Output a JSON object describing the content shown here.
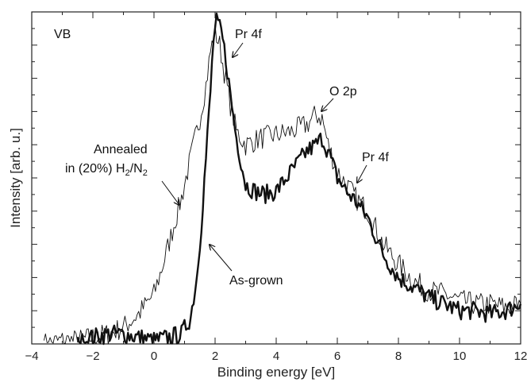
{
  "chart_data": {
    "type": "line",
    "title": "",
    "xlabel": "Binding energy [eV]",
    "ylabel": "Intensity [arb. u.]",
    "xlim": [
      -4,
      12
    ],
    "ylim": [
      0,
      1.0
    ],
    "x_ticks": [
      -4,
      -2,
      0,
      2,
      4,
      6,
      8,
      10,
      12
    ],
    "x_tick_labels": [
      "−4",
      "−2",
      "0",
      "2",
      "4",
      "6",
      "8",
      "10",
      "12"
    ],
    "y_tick_labels": "none",
    "grid": false,
    "panel_label": "VB",
    "series": [
      {
        "name": "Annealed in (20%) H2/N2",
        "style": "thin",
        "color": "#111111",
        "x": [
          -3.6,
          -3.0,
          -2.5,
          -2.0,
          -1.5,
          -1.0,
          -0.5,
          0.0,
          0.3,
          0.6,
          0.9,
          1.1,
          1.3,
          1.5,
          1.7,
          1.85,
          2.0,
          2.15,
          2.3,
          2.5,
          2.7,
          3.0,
          3.5,
          4.0,
          4.5,
          5.0,
          5.3,
          5.5,
          5.7,
          6.0,
          6.3,
          6.6,
          7.0,
          7.5,
          8.0,
          8.5,
          9.0,
          9.5,
          10.0,
          10.5,
          11.0,
          11.5,
          12.0
        ],
        "y": [
          0.0,
          0.01,
          0.01,
          0.02,
          0.03,
          0.05,
          0.09,
          0.15,
          0.24,
          0.34,
          0.44,
          0.52,
          0.6,
          0.68,
          0.78,
          0.88,
          0.94,
          0.9,
          0.82,
          0.72,
          0.64,
          0.6,
          0.62,
          0.63,
          0.64,
          0.66,
          0.69,
          0.68,
          0.6,
          0.52,
          0.48,
          0.44,
          0.4,
          0.3,
          0.24,
          0.19,
          0.16,
          0.15,
          0.13,
          0.12,
          0.12,
          0.11,
          0.12
        ]
      },
      {
        "name": "As-grown",
        "style": "thick",
        "color": "#111111",
        "x": [
          -2.5,
          -2.0,
          -1.5,
          -1.0,
          -0.5,
          0.0,
          0.5,
          0.9,
          1.2,
          1.4,
          1.55,
          1.7,
          1.85,
          1.95,
          2.05,
          2.2,
          2.35,
          2.5,
          2.7,
          3.0,
          3.3,
          3.6,
          4.0,
          4.5,
          5.0,
          5.3,
          5.5,
          5.7,
          6.0,
          6.3,
          6.6,
          7.0,
          7.5,
          8.0,
          8.5,
          9.0,
          9.5,
          10.0,
          10.5,
          11.0,
          11.5,
          12.0
        ],
        "y": [
          0.0,
          0.02,
          0.03,
          0.03,
          0.02,
          0.01,
          0.02,
          0.03,
          0.08,
          0.2,
          0.36,
          0.56,
          0.76,
          0.92,
          0.97,
          0.94,
          0.86,
          0.75,
          0.62,
          0.48,
          0.46,
          0.45,
          0.46,
          0.52,
          0.58,
          0.6,
          0.62,
          0.58,
          0.5,
          0.46,
          0.43,
          0.38,
          0.27,
          0.2,
          0.17,
          0.14,
          0.12,
          0.1,
          0.1,
          0.09,
          0.1,
          0.12
        ]
      }
    ],
    "annotations": [
      {
        "text": "Pr 4f",
        "target": [
          2.2,
          0.93
        ]
      },
      {
        "text": "O 2p",
        "target": [
          5.5,
          0.68
        ]
      },
      {
        "text": "Pr 4f",
        "target": [
          6.6,
          0.49
        ]
      },
      {
        "text_line1": "Annealed",
        "text_line2_main": "in (20%) H",
        "text_line2_sub1": "2",
        "text_line2_mid": "/N",
        "text_line2_sub2": "2",
        "target": [
          0.85,
          0.45
        ]
      },
      {
        "text": "As-grown",
        "target": [
          1.5,
          0.3
        ]
      }
    ]
  }
}
